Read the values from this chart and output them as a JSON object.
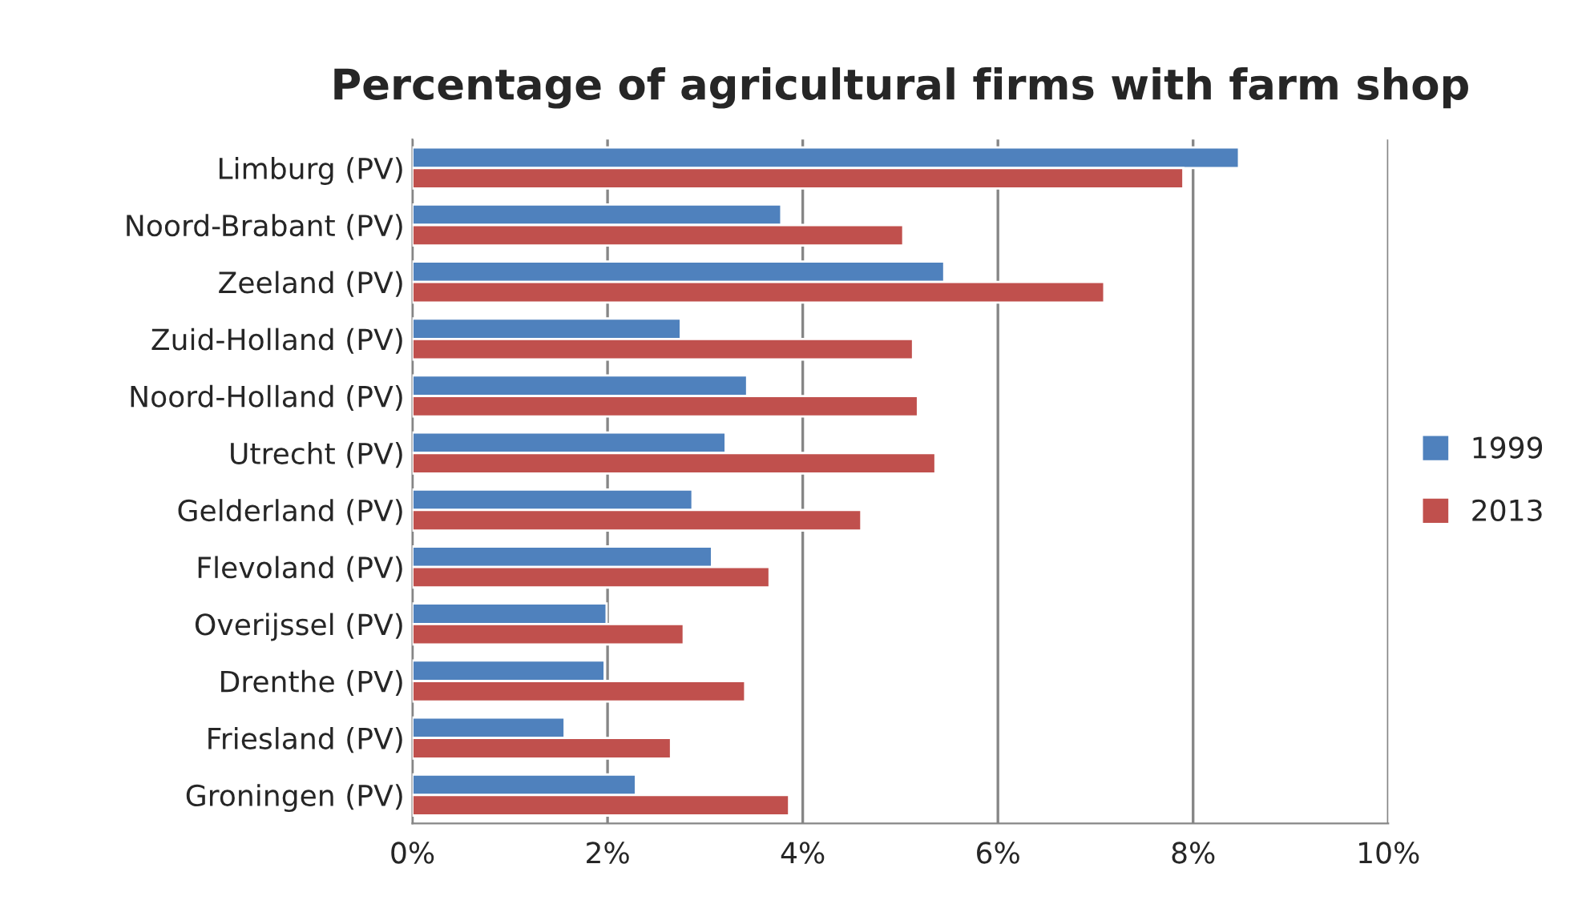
{
  "chart_data": {
    "type": "bar",
    "orientation": "horizontal",
    "title": "Percentage of agricultural firms with farm shop",
    "categories": [
      "Limburg (PV)",
      "Noord-Brabant (PV)",
      "Zeeland (PV)",
      "Zuid-Holland (PV)",
      "Noord-Holland (PV)",
      "Utrecht (PV)",
      "Gelderland (PV)",
      "Flevoland (PV)",
      "Overijssel (PV)",
      "Drenthe (PV)",
      "Friesland (PV)",
      "Groningen (PV)"
    ],
    "series": [
      {
        "name": "1999",
        "color": "#4f81bd",
        "values": [
          8.47,
          3.78,
          5.45,
          2.75,
          3.43,
          3.21,
          2.87,
          3.07,
          1.99,
          1.97,
          1.56,
          2.29
        ]
      },
      {
        "name": "2013",
        "color": "#c0504d",
        "values": [
          7.9,
          5.03,
          7.09,
          5.13,
          5.18,
          5.36,
          4.6,
          3.66,
          2.78,
          3.41,
          2.65,
          3.86
        ]
      }
    ],
    "xlim": [
      0,
      10
    ],
    "xticks": [
      {
        "value": 0,
        "label": "0%"
      },
      {
        "value": 2,
        "label": "2%"
      },
      {
        "value": 4,
        "label": "4%"
      },
      {
        "value": 6,
        "label": "6%"
      },
      {
        "value": 8,
        "label": "8%"
      },
      {
        "value": 10,
        "label": "10%"
      }
    ],
    "grid": "x",
    "legend": "right"
  }
}
